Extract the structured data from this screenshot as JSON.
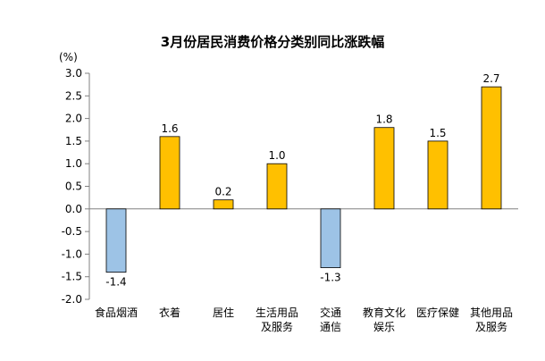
{
  "chart_data": {
    "type": "bar",
    "title": "3月份居民消费价格分类别同比涨跌幅",
    "unit_label": "(%)",
    "categories": [
      [
        "食品烟酒"
      ],
      [
        "衣着"
      ],
      [
        "居住"
      ],
      [
        "生活用品",
        "及服务"
      ],
      [
        "交通",
        "通信"
      ],
      [
        "教育文化",
        "娱乐"
      ],
      [
        "医疗保健"
      ],
      [
        "其他用品",
        "及服务"
      ]
    ],
    "values": [
      -1.4,
      1.6,
      0.2,
      1.0,
      -1.3,
      1.8,
      1.5,
      2.7
    ],
    "data_labels": [
      "-1.4",
      "1.6",
      "0.2",
      "1.0",
      "-1.3",
      "1.8",
      "1.5",
      "2.7"
    ],
    "yticks": [
      "3.0",
      "2.5",
      "2.0",
      "1.5",
      "1.0",
      "0.5",
      "0.0",
      "-0.5",
      "-1.0",
      "-1.5",
      "-2.0"
    ],
    "ylim": [
      -2.0,
      3.0
    ],
    "grid": false,
    "colors": {
      "positive_fill": "#FFC000",
      "positive_stroke": "#000000",
      "negative_fill": "#9DC3E6",
      "negative_stroke": "#000000",
      "axis": "#808080"
    }
  }
}
